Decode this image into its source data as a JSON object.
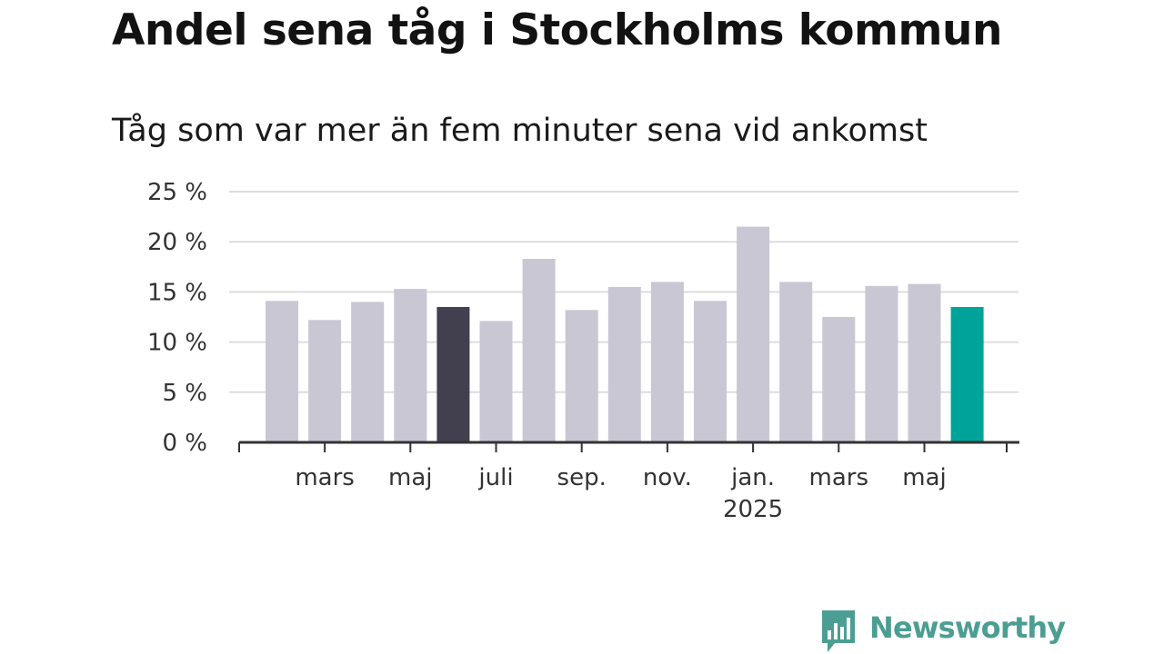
{
  "chart_data": {
    "type": "bar",
    "title": "Andel sena tåg i Stockholms kommun",
    "subtitle": "Tåg som var mer än fem minuter sena vid ankomst",
    "xlabel": "",
    "ylabel": "",
    "ylim": [
      0,
      25
    ],
    "yticks": [
      0,
      5,
      10,
      15,
      20,
      25
    ],
    "ytick_suffix": " %",
    "grid": true,
    "legend": "none",
    "categories": [
      "2024-02",
      "2024-03",
      "2024-04",
      "2024-05",
      "2024-06",
      "2024-07",
      "2024-08",
      "2024-09",
      "2024-10",
      "2024-11",
      "2024-12",
      "2025-01",
      "2025-02",
      "2025-03",
      "2025-04",
      "2025-05",
      "2025-06"
    ],
    "values": [
      14.1,
      12.2,
      14.0,
      15.3,
      13.5,
      12.1,
      18.3,
      13.2,
      15.5,
      16.0,
      14.1,
      21.5,
      16.0,
      12.5,
      15.6,
      15.8,
      13.5
    ],
    "xtick_labels": [
      {
        "category": "2024-03",
        "label": "mars",
        "sublabel": ""
      },
      {
        "category": "2024-05",
        "label": "maj",
        "sublabel": ""
      },
      {
        "category": "2024-07",
        "label": "juli",
        "sublabel": ""
      },
      {
        "category": "2024-09",
        "label": "sep.",
        "sublabel": ""
      },
      {
        "category": "2024-11",
        "label": "nov.",
        "sublabel": ""
      },
      {
        "category": "2025-01",
        "label": "jan.",
        "sublabel": "2025"
      },
      {
        "category": "2025-03",
        "label": "mars",
        "sublabel": ""
      },
      {
        "category": "2025-05",
        "label": "maj",
        "sublabel": ""
      }
    ],
    "colors": {
      "default": "#c8c7d3",
      "highlight_2024-06": "#42404f",
      "highlight_2025-06": "#00a39a",
      "grid": "#dddddd",
      "axis": "#333333"
    },
    "highlights": {
      "2024-06": "#42404f",
      "2025-06": "#00a39a"
    }
  },
  "branding": {
    "logo_text": "Newsworthy",
    "logo_color": "#4c9e93"
  }
}
